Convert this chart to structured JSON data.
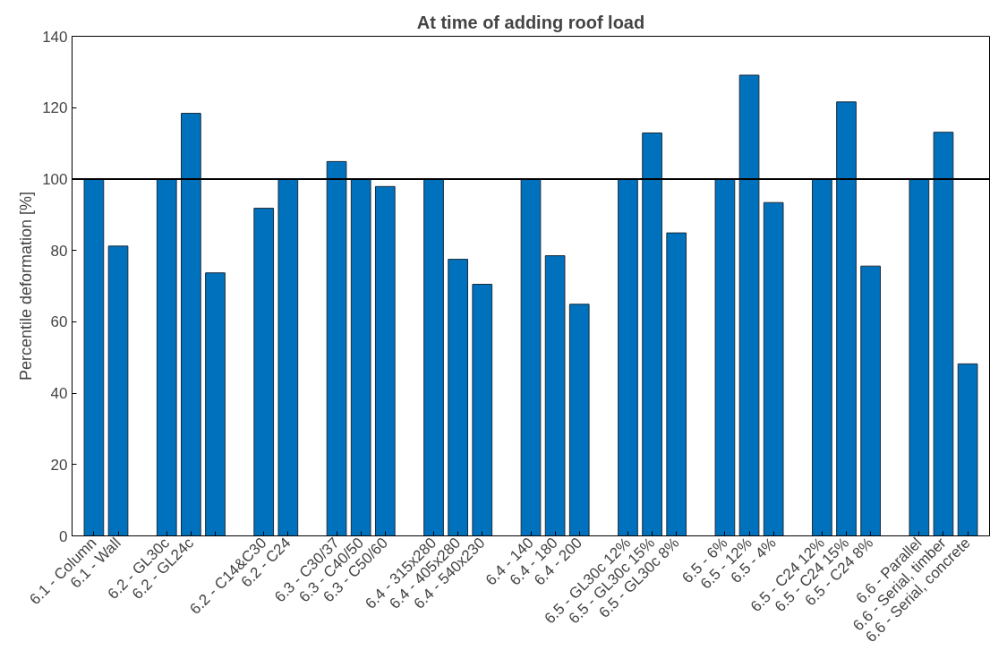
{
  "chart_data": {
    "type": "bar",
    "title": "At time of adding roof load",
    "ylabel": "Percentile deformation [%]",
    "categories": [
      "6.1 - Column",
      "6.1 - Wall",
      null,
      "6.2 - GL30c",
      "6.2 - GL24c",
      null,
      null,
      "6.2 - C14&C30",
      "6.2 - C24",
      null,
      "6.3 - C30/37",
      "6.3 - C40/50",
      "6.3 - C50/60",
      null,
      "6.4 - 315x280",
      "6.4 - 405x280",
      "6.4 - 540x230",
      null,
      "6.4 - 140",
      "6.4 - 180",
      "6.4 - 200",
      null,
      "6.5 - GL30c 12%",
      "6.5 - GL30c 15%",
      "6.5 - GL30c 8%",
      null,
      "6.5 - 6%",
      "6.5 - 12%",
      "6.5 - 4%",
      null,
      "6.5 - C24 12%",
      "6.5 - C24 15%",
      "6.5 - C24 8%",
      null,
      "6.6 - Parallel",
      "6.6 - Serial, timber",
      "6.6 - Serial, concrete"
    ],
    "values": [
      100,
      81.2,
      null,
      100,
      118.4,
      73.7,
      null,
      91.8,
      100,
      null,
      104.9,
      100,
      97.9,
      null,
      100,
      77.5,
      70.5,
      null,
      100,
      78.5,
      64.9,
      null,
      100,
      112.9,
      84.9,
      null,
      100,
      129.1,
      93.4,
      null,
      100,
      121.6,
      75.6,
      null,
      100,
      113.1,
      48.2
    ],
    "color": "#0072bd",
    "ylim": [
      0,
      140
    ],
    "yticks": [
      0,
      20,
      40,
      60,
      80,
      100,
      120,
      140
    ],
    "grid": false,
    "ref_lines": [
      {
        "axis": "y",
        "value": 100,
        "color": "#000000",
        "line_style": "solid"
      }
    ]
  }
}
